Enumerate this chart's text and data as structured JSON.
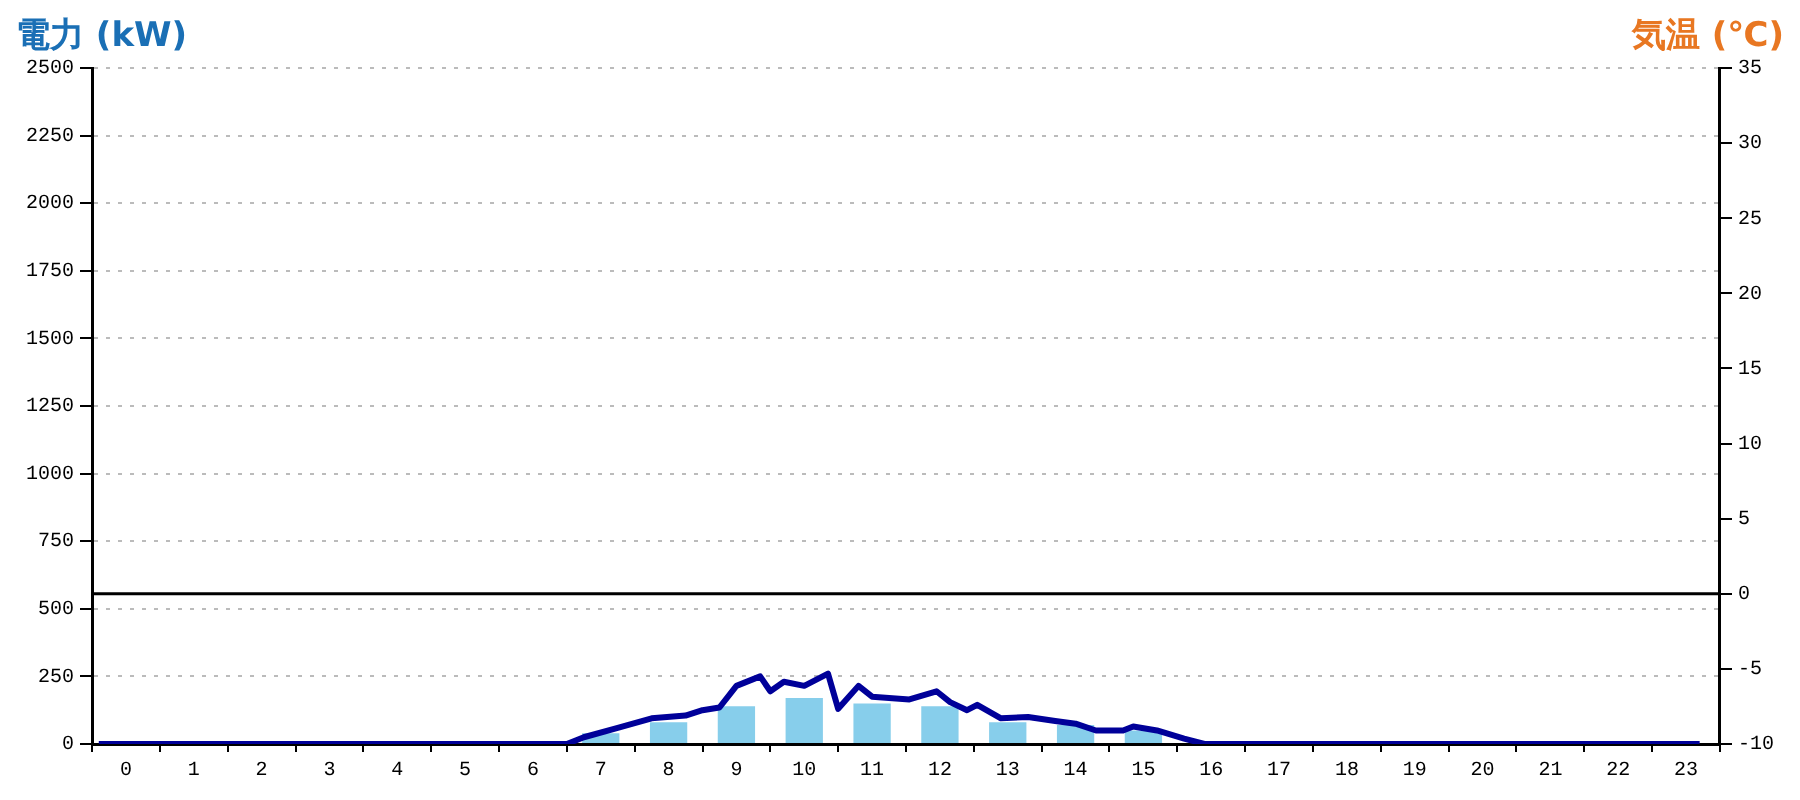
{
  "chart_data": {
    "type": "bar",
    "ylabel": "電力 (kW)",
    "y2label": "気温 (℃)",
    "x": [
      0,
      1,
      2,
      3,
      4,
      5,
      6,
      7,
      8,
      9,
      10,
      11,
      12,
      13,
      14,
      15,
      16,
      17,
      18,
      19,
      20,
      21,
      22,
      23
    ],
    "xlim": [
      -0.5,
      23.5
    ],
    "xticks": [
      0,
      1,
      2,
      3,
      4,
      5,
      6,
      7,
      8,
      9,
      10,
      11,
      12,
      13,
      14,
      15,
      16,
      17,
      18,
      19,
      20,
      21,
      22,
      23
    ],
    "series": [
      {
        "color": "#87ceeb",
        "values": [
          0,
          0,
          0,
          0,
          0,
          0,
          0,
          40,
          80,
          140,
          170,
          150,
          140,
          80,
          70,
          50,
          0,
          0,
          0,
          0,
          0,
          0,
          0,
          0
        ]
      },
      {
        "type": "line",
        "color": "#000099",
        "x": [
          -0.4,
          6.5,
          6.75,
          7.25,
          7.75,
          8.25,
          8.5,
          8.75,
          9,
          9.35,
          9.5,
          9.7,
          10,
          10.35,
          10.5,
          10.8,
          11,
          11.55,
          11.95,
          12.15,
          12.4,
          12.55,
          12.9,
          13.3,
          13.7,
          14,
          14.3,
          14.7,
          14.85,
          15.2,
          15.6,
          15.9,
          23.2
        ],
        "values": [
          0,
          0,
          25,
          60,
          95,
          105,
          125,
          135,
          215,
          250,
          195,
          230,
          215,
          260,
          130,
          215,
          175,
          165,
          195,
          155,
          125,
          145,
          95,
          100,
          85,
          75,
          50,
          50,
          65,
          50,
          20,
          0,
          0
        ]
      }
    ],
    "ylim": [
      0,
      2500
    ],
    "yticks": [
      0,
      250,
      500,
      750,
      1000,
      1250,
      1500,
      1750,
      2000,
      2250,
      2500
    ],
    "y2lim": [
      -10,
      35
    ],
    "y2ticks": [
      -10,
      -5,
      0,
      5,
      10,
      15,
      20,
      25,
      30,
      35
    ],
    "ref_lines": [
      {
        "axis": "y2",
        "value": 0,
        "color": "#000000",
        "line_style": "solid"
      }
    ],
    "grid": "y",
    "legend": false,
    "marker": "none",
    "line_style": "solid"
  }
}
